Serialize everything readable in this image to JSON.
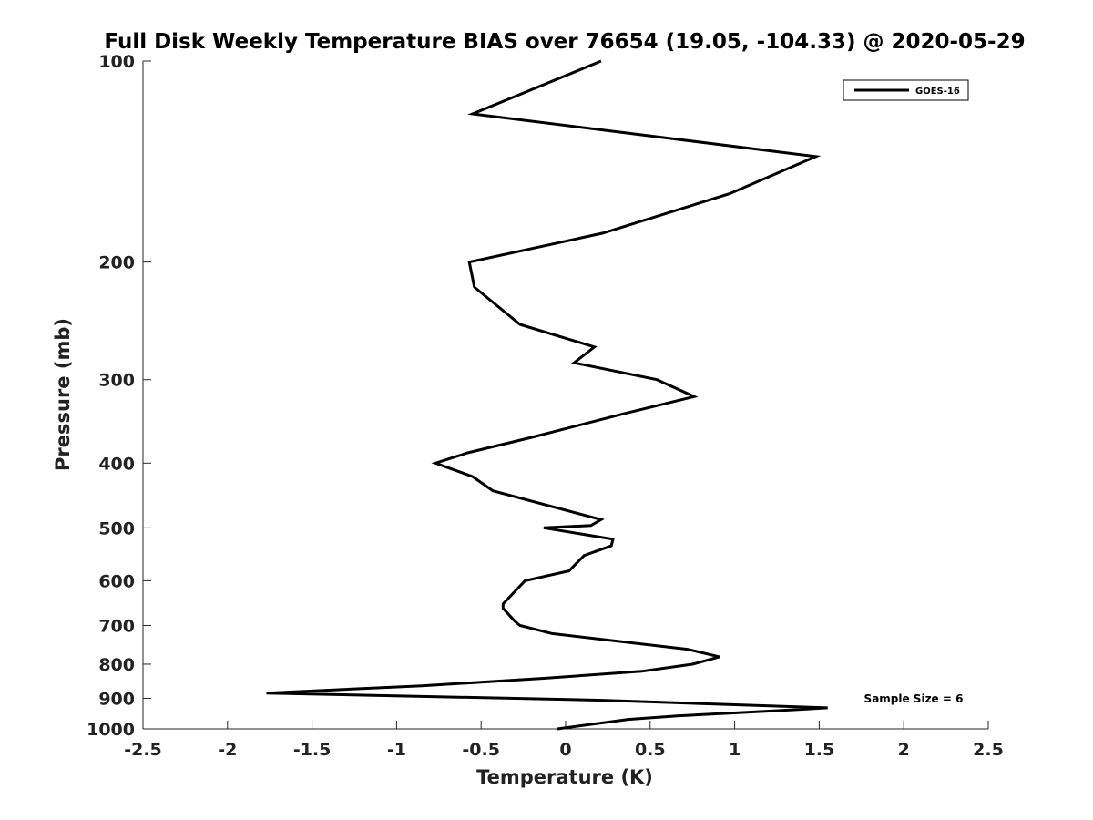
{
  "chart_data": {
    "type": "line",
    "title": "Full Disk Weekly Temperature BIAS over 76654 (19.05, -104.33) @ 2020-05-29",
    "xlabel": "Temperature (K)",
    "ylabel": "Pressure (mb)",
    "xlim": [
      -2.5,
      2.5
    ],
    "ylim": [
      1000,
      100
    ],
    "y_scale": "log",
    "y_direction": "reversed",
    "x_ticks": [
      -2.5,
      -2,
      -1.5,
      -1,
      -0.5,
      0,
      0.5,
      1,
      1.5,
      2,
      2.5
    ],
    "x_tick_labels": [
      "-2.5",
      "-2",
      "-1.5",
      "-1",
      "-0.5",
      "0",
      "0.5",
      "1",
      "1.5",
      "2",
      "2.5"
    ],
    "y_ticks": [
      100,
      200,
      300,
      400,
      500,
      600,
      700,
      800,
      900,
      1000
    ],
    "y_tick_labels": [
      "100",
      "200",
      "300",
      "400",
      "500",
      "600",
      "700",
      "800",
      "900",
      "1000"
    ],
    "grid": false,
    "legend_position": "top-right",
    "annotation": "Sample Size = 6",
    "series": [
      {
        "name": "GOES-16",
        "color": "#000000",
        "points": [
          {
            "x": 0.21,
            "y": 100
          },
          {
            "x": -0.55,
            "y": 120
          },
          {
            "x": 1.48,
            "y": 139
          },
          {
            "x": 0.97,
            "y": 158
          },
          {
            "x": 0.22,
            "y": 181
          },
          {
            "x": -0.57,
            "y": 200
          },
          {
            "x": -0.54,
            "y": 218
          },
          {
            "x": -0.27,
            "y": 248
          },
          {
            "x": 0.17,
            "y": 268
          },
          {
            "x": 0.05,
            "y": 283
          },
          {
            "x": 0.54,
            "y": 300
          },
          {
            "x": 0.76,
            "y": 318
          },
          {
            "x": 0.35,
            "y": 337
          },
          {
            "x": -0.2,
            "y": 366
          },
          {
            "x": -0.58,
            "y": 386
          },
          {
            "x": -0.77,
            "y": 400
          },
          {
            "x": -0.55,
            "y": 419
          },
          {
            "x": -0.43,
            "y": 440
          },
          {
            "x": 0.21,
            "y": 486
          },
          {
            "x": 0.15,
            "y": 496
          },
          {
            "x": -0.13,
            "y": 500
          },
          {
            "x": 0.28,
            "y": 520
          },
          {
            "x": 0.27,
            "y": 532
          },
          {
            "x": 0.11,
            "y": 550
          },
          {
            "x": 0.02,
            "y": 580
          },
          {
            "x": -0.24,
            "y": 600
          },
          {
            "x": -0.37,
            "y": 650
          },
          {
            "x": -0.37,
            "y": 660
          },
          {
            "x": -0.3,
            "y": 690
          },
          {
            "x": -0.27,
            "y": 700
          },
          {
            "x": -0.08,
            "y": 720
          },
          {
            "x": 0.72,
            "y": 760
          },
          {
            "x": 0.91,
            "y": 780
          },
          {
            "x": 0.75,
            "y": 800
          },
          {
            "x": 0.45,
            "y": 820
          },
          {
            "x": -0.13,
            "y": 840
          },
          {
            "x": -0.85,
            "y": 862
          },
          {
            "x": -1.77,
            "y": 884
          },
          {
            "x": 0.22,
            "y": 906
          },
          {
            "x": 1.55,
            "y": 930
          },
          {
            "x": 1.23,
            "y": 940
          },
          {
            "x": 0.66,
            "y": 956
          },
          {
            "x": 0.37,
            "y": 968
          },
          {
            "x": -0.05,
            "y": 1000
          }
        ]
      }
    ]
  }
}
